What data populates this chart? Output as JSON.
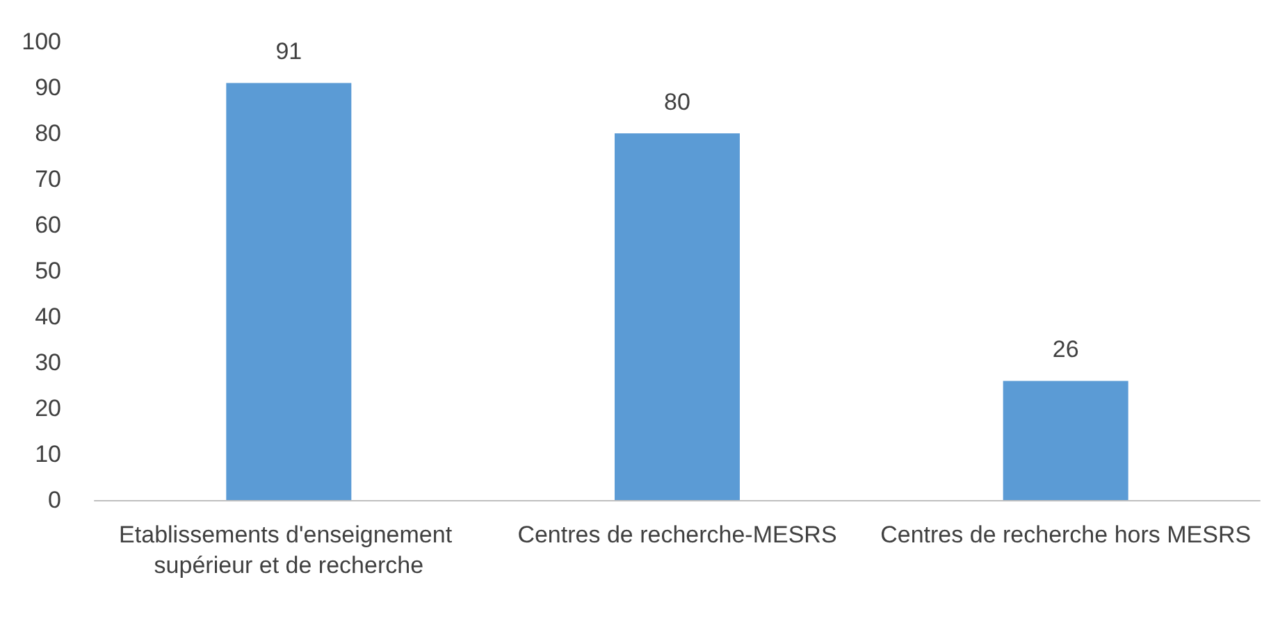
{
  "chart_data": {
    "type": "bar",
    "categories": [
      "Etablissements d'enseignement supérieur et de recherche",
      "Centres de recherche-MESRS",
      "Centres de recherche hors MESRS"
    ],
    "values": [
      91,
      80,
      26
    ],
    "color": "#5b9bd5",
    "ylim": [
      0,
      100
    ],
    "yticks": [
      0,
      10,
      20,
      30,
      40,
      50,
      60,
      70,
      80,
      90,
      100
    ],
    "grid": false,
    "data_labels": true
  }
}
